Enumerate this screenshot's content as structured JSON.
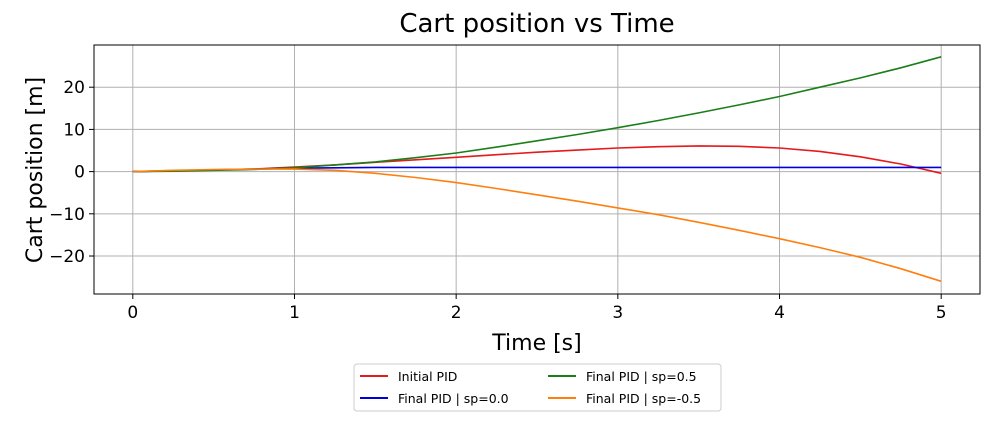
{
  "chart_data": {
    "type": "line",
    "title": "Cart position vs Time",
    "xlabel": "Time [s]",
    "ylabel": "Cart position [m]",
    "xlim": [
      -0.24,
      5.24
    ],
    "ylim": [
      -29,
      30
    ],
    "xticks": [
      0,
      1,
      2,
      3,
      4,
      5
    ],
    "yticks": [
      -20,
      -10,
      0,
      10,
      20
    ],
    "grid": true,
    "legend_position": "below center",
    "x": [
      0,
      0.25,
      0.5,
      0.75,
      1.0,
      1.25,
      1.5,
      1.75,
      2.0,
      2.25,
      2.5,
      2.75,
      3.0,
      3.25,
      3.5,
      3.75,
      4.0,
      4.25,
      4.5,
      4.75,
      5.0
    ],
    "series": [
      {
        "name": "Initial PID",
        "color": "#e41a1c",
        "values": [
          0.0,
          0.2,
          0.4,
          0.6,
          1.1,
          1.6,
          2.2,
          2.8,
          3.4,
          4.0,
          4.6,
          5.1,
          5.6,
          5.9,
          6.1,
          6.0,
          5.6,
          4.8,
          3.5,
          1.8,
          -0.4
        ]
      },
      {
        "name": "Final PID | sp=0.0",
        "color": "#0000dd",
        "values": [
          0.0,
          0.2,
          0.4,
          0.6,
          0.8,
          0.9,
          1.0,
          1.0,
          1.0,
          1.0,
          1.0,
          1.0,
          1.0,
          1.0,
          1.0,
          1.0,
          1.0,
          1.0,
          1.0,
          1.0,
          1.0
        ]
      },
      {
        "name": "Final PID | sp=0.5",
        "color": "#1a7f1a",
        "values": [
          0.0,
          0.1,
          0.3,
          0.5,
          0.9,
          1.6,
          2.3,
          3.3,
          4.4,
          5.8,
          7.3,
          8.8,
          10.4,
          12.1,
          13.9,
          15.8,
          17.8,
          20.0,
          22.2,
          24.6,
          27.2
        ]
      },
      {
        "name": "Final PID | sp=-0.5",
        "color": "#ff7f0e",
        "values": [
          0.0,
          0.3,
          0.5,
          0.6,
          0.6,
          0.3,
          -0.4,
          -1.4,
          -2.6,
          -4.0,
          -5.5,
          -7.0,
          -8.6,
          -10.2,
          -12.0,
          -13.9,
          -15.9,
          -18.0,
          -20.3,
          -23.0,
          -26.0
        ]
      }
    ]
  }
}
